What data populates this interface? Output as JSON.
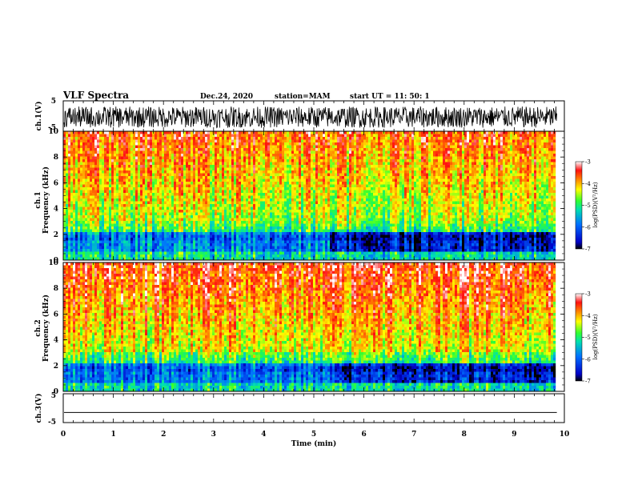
{
  "header": {
    "title": "VLF Spectra",
    "date": "Dec.24, 2020",
    "station": "station=MAM",
    "start": "start  UT  =   11: 50: 1"
  },
  "chart_data": [
    {
      "type": "line",
      "id": "ch1-waveform",
      "ylabel": "ch.1(V)",
      "ylim": [
        -5,
        5
      ],
      "yticks": [
        "5",
        "-5"
      ],
      "xlim": [
        0,
        10
      ],
      "note": "dense noise waveform, amplitude approximately -4 to 3 V over 0–9.8 min"
    },
    {
      "type": "heatmap",
      "id": "ch1-spectrogram",
      "ylabel": "ch.1\nFrequency (kHz)",
      "ylabel_lines": [
        "ch.1",
        "Frequency (kHz)"
      ],
      "ylim": [
        0,
        10
      ],
      "yticks": [
        "0",
        "2",
        "4",
        "6",
        "8",
        "10"
      ],
      "xlim": [
        0,
        10
      ],
      "data_extent_min": 9.85,
      "colorbar": {
        "label": "log(PSD)(V²/Hz)",
        "range": [
          -7,
          -3
        ],
        "ticks": [
          "-3",
          "-4",
          "-5",
          "-6",
          "-7"
        ]
      }
    },
    {
      "type": "heatmap",
      "id": "ch2-spectrogram",
      "ylabel": "ch.2\nFrequency (kHz)",
      "ylabel_lines": [
        "ch.2",
        "Frequency (kHz)"
      ],
      "ylim": [
        0,
        10
      ],
      "yticks": [
        "0",
        "2",
        "4",
        "6",
        "8",
        "10"
      ],
      "xlim": [
        0,
        10
      ],
      "data_extent_min": 9.85,
      "colorbar": {
        "label": "log(PSD)(V²/Hz)",
        "range": [
          -7,
          -3
        ],
        "ticks": [
          "-3",
          "-4",
          "-5",
          "-6",
          "-7"
        ]
      }
    },
    {
      "type": "line",
      "id": "ch3-waveform",
      "ylabel": "ch.3(V)",
      "ylim": [
        -5,
        5
      ],
      "yticks": [
        "5",
        "-5"
      ],
      "xlim": [
        0,
        10
      ],
      "values_constant": -1.5,
      "xlabel": "Time (min)",
      "xticks": [
        "0",
        "1",
        "2",
        "3",
        "4",
        "5",
        "6",
        "7",
        "8",
        "9",
        "10"
      ]
    }
  ],
  "colors": {
    "background": "#ffffff",
    "axes": "#000000"
  }
}
